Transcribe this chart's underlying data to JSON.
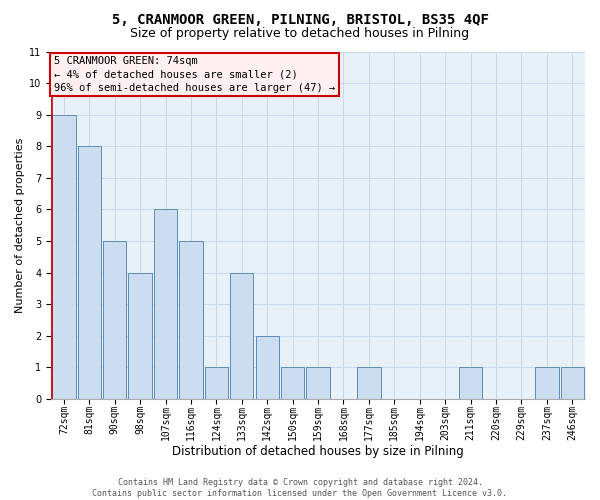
{
  "title": "5, CRANMOOR GREEN, PILNING, BRISTOL, BS35 4QF",
  "subtitle": "Size of property relative to detached houses in Pilning",
  "xlabel": "Distribution of detached houses by size in Pilning",
  "ylabel": "Number of detached properties",
  "bar_labels": [
    "72sqm",
    "81sqm",
    "90sqm",
    "98sqm",
    "107sqm",
    "116sqm",
    "124sqm",
    "133sqm",
    "142sqm",
    "150sqm",
    "159sqm",
    "168sqm",
    "177sqm",
    "185sqm",
    "194sqm",
    "203sqm",
    "211sqm",
    "220sqm",
    "229sqm",
    "237sqm",
    "246sqm"
  ],
  "bar_values": [
    9,
    8,
    5,
    4,
    6,
    5,
    1,
    4,
    2,
    1,
    1,
    0,
    1,
    0,
    0,
    0,
    1,
    0,
    0,
    1,
    1
  ],
  "bar_color": "#ccddf0",
  "bar_edgecolor": "#5b8db8",
  "highlight_edgecolor": "#cc0000",
  "ylim": [
    0,
    11
  ],
  "yticks": [
    0,
    1,
    2,
    3,
    4,
    5,
    6,
    7,
    8,
    9,
    10,
    11
  ],
  "annotation_lines": [
    "5 CRANMOOR GREEN: 74sqm",
    "← 4% of detached houses are smaller (2)",
    "96% of semi-detached houses are larger (47) →"
  ],
  "annotation_box_facecolor": "#fff0f0",
  "annotation_border_color": "#cc0000",
  "footer_line1": "Contains HM Land Registry data © Crown copyright and database right 2024.",
  "footer_line2": "Contains public sector information licensed under the Open Government Licence v3.0.",
  "grid_color": "#c8daea",
  "background_color": "#e8f0f8",
  "title_fontsize": 10,
  "subtitle_fontsize": 9,
  "tick_fontsize": 7,
  "ylabel_fontsize": 8,
  "xlabel_fontsize": 8.5,
  "footer_fontsize": 6,
  "ann_fontsize": 7.5
}
